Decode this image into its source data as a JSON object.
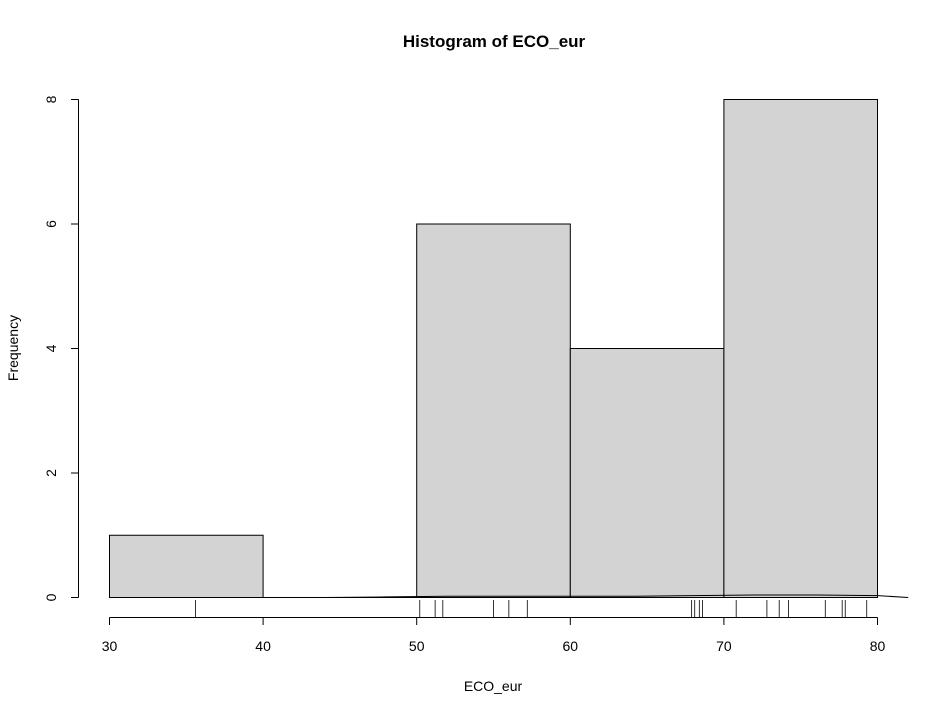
{
  "chart_data": {
    "type": "bar",
    "title": "Histogram of ECO_eur",
    "xlabel": "ECO_eur",
    "ylabel": "Frequency",
    "bins": [
      [
        30,
        40
      ],
      [
        40,
        50
      ],
      [
        50,
        60
      ],
      [
        60,
        70
      ],
      [
        70,
        80
      ]
    ],
    "values": [
      1,
      0,
      6,
      4,
      8
    ],
    "xlim": [
      30,
      80
    ],
    "ylim": [
      0,
      8
    ],
    "x_ticks": [
      30,
      40,
      50,
      60,
      70,
      80
    ],
    "y_ticks": [
      0,
      2,
      4,
      6,
      8
    ],
    "rug": [
      35.6,
      50.2,
      51.2,
      51.7,
      55.0,
      56.0,
      57.2,
      67.9,
      68.1,
      68.4,
      68.6,
      70.8,
      72.8,
      73.6,
      74.2,
      76.6,
      77.7,
      77.9,
      79.3
    ],
    "density_curve": {
      "x": [
        40,
        44,
        48,
        52,
        56,
        60,
        64,
        68,
        72,
        76,
        80,
        82
      ],
      "y": [
        0.0,
        0.0,
        0.01,
        0.02,
        0.02,
        0.02,
        0.02,
        0.03,
        0.04,
        0.04,
        0.03,
        0.0
      ]
    },
    "grid": false,
    "legend": "none"
  }
}
